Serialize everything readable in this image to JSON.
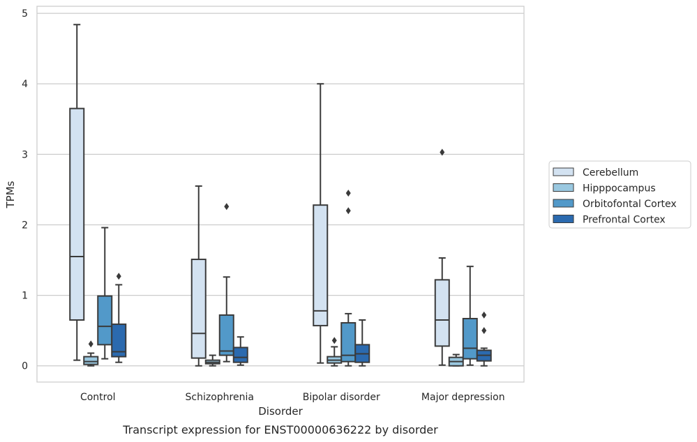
{
  "chart_data": {
    "type": "box",
    "caption": "Transcript expression for ENST00000636222 by disorder",
    "xlabel": "Disorder",
    "ylabel": "TPMs",
    "ylim": [
      -0.23,
      5.1
    ],
    "yticks": [
      0,
      1,
      2,
      3,
      4,
      5
    ],
    "grid": true,
    "legend_position": "right",
    "categories": [
      "Control",
      "Schizophrenia",
      "Bipolar disorder",
      "Major depression"
    ],
    "series": [
      {
        "name": "Cerebellum",
        "color": "#d3e2f1",
        "boxes": [
          {
            "whisker_low": 0.08,
            "q1": 0.65,
            "median": 1.55,
            "q3": 3.65,
            "whisker_high": 4.84,
            "outliers": []
          },
          {
            "whisker_low": 0.0,
            "q1": 0.11,
            "median": 0.46,
            "q3": 1.51,
            "whisker_high": 2.55,
            "outliers": []
          },
          {
            "whisker_low": 0.04,
            "q1": 0.57,
            "median": 0.78,
            "q3": 2.28,
            "whisker_high": 4.0,
            "outliers": []
          },
          {
            "whisker_low": 0.01,
            "q1": 0.28,
            "median": 0.65,
            "q3": 1.22,
            "whisker_high": 1.53,
            "outliers": [
              3.03
            ]
          }
        ]
      },
      {
        "name": "Hipppocampus",
        "color": "#9ac8e0",
        "boxes": [
          {
            "whisker_low": 0.0,
            "q1": 0.02,
            "median": 0.06,
            "q3": 0.13,
            "whisker_high": 0.18,
            "outliers": [
              0.31
            ]
          },
          {
            "whisker_low": 0.0,
            "q1": 0.03,
            "median": 0.05,
            "q3": 0.08,
            "whisker_high": 0.15,
            "outliers": []
          },
          {
            "whisker_low": 0.0,
            "q1": 0.04,
            "median": 0.08,
            "q3": 0.13,
            "whisker_high": 0.27,
            "outliers": [
              0.36
            ]
          },
          {
            "whisker_low": 0.0,
            "q1": 0.0,
            "median": 0.06,
            "q3": 0.12,
            "whisker_high": 0.16,
            "outliers": []
          }
        ]
      },
      {
        "name": "Orbitofontal Cortex",
        "color": "#5299c9",
        "boxes": [
          {
            "whisker_low": 0.1,
            "q1": 0.3,
            "median": 0.56,
            "q3": 0.99,
            "whisker_high": 1.96,
            "outliers": []
          },
          {
            "whisker_low": 0.06,
            "q1": 0.15,
            "median": 0.21,
            "q3": 0.72,
            "whisker_high": 1.26,
            "outliers": [
              2.26
            ]
          },
          {
            "whisker_low": 0.0,
            "q1": 0.06,
            "median": 0.15,
            "q3": 0.61,
            "whisker_high": 0.74,
            "outliers": [
              2.2,
              2.45
            ]
          },
          {
            "whisker_low": 0.01,
            "q1": 0.1,
            "median": 0.25,
            "q3": 0.67,
            "whisker_high": 1.41,
            "outliers": []
          }
        ]
      },
      {
        "name": "Prefrontal Cortex",
        "color": "#2b6aaf",
        "boxes": [
          {
            "whisker_low": 0.05,
            "q1": 0.13,
            "median": 0.2,
            "q3": 0.59,
            "whisker_high": 1.15,
            "outliers": [
              1.27
            ]
          },
          {
            "whisker_low": 0.01,
            "q1": 0.05,
            "median": 0.12,
            "q3": 0.26,
            "whisker_high": 0.41,
            "outliers": []
          },
          {
            "whisker_low": 0.0,
            "q1": 0.05,
            "median": 0.17,
            "q3": 0.3,
            "whisker_high": 0.65,
            "outliers": []
          },
          {
            "whisker_low": 0.0,
            "q1": 0.07,
            "median": 0.15,
            "q3": 0.22,
            "whisker_high": 0.25,
            "outliers": [
              0.5,
              0.72
            ]
          }
        ]
      }
    ]
  }
}
